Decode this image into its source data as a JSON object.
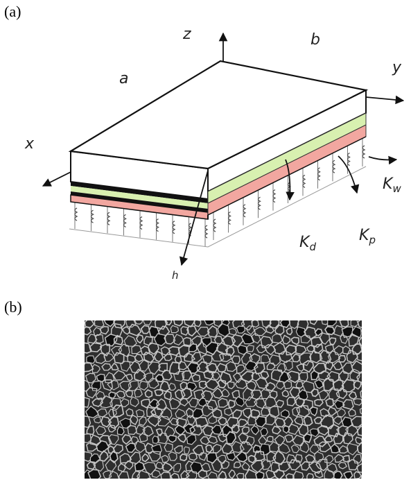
{
  "panel_a": {
    "label": "(a)",
    "axes": {
      "z": "z",
      "y": "y",
      "x": "x",
      "h": "h"
    },
    "dimensions": {
      "a": "a",
      "b": "b"
    },
    "foundation": {
      "winkler": {
        "symbol": "K",
        "subscript": "w"
      },
      "damping": {
        "symbol": "K",
        "subscript": "d"
      },
      "pasternak": {
        "symbol": "K",
        "subscript": "p"
      }
    }
  },
  "panel_b": {
    "label": "(b)"
  }
}
